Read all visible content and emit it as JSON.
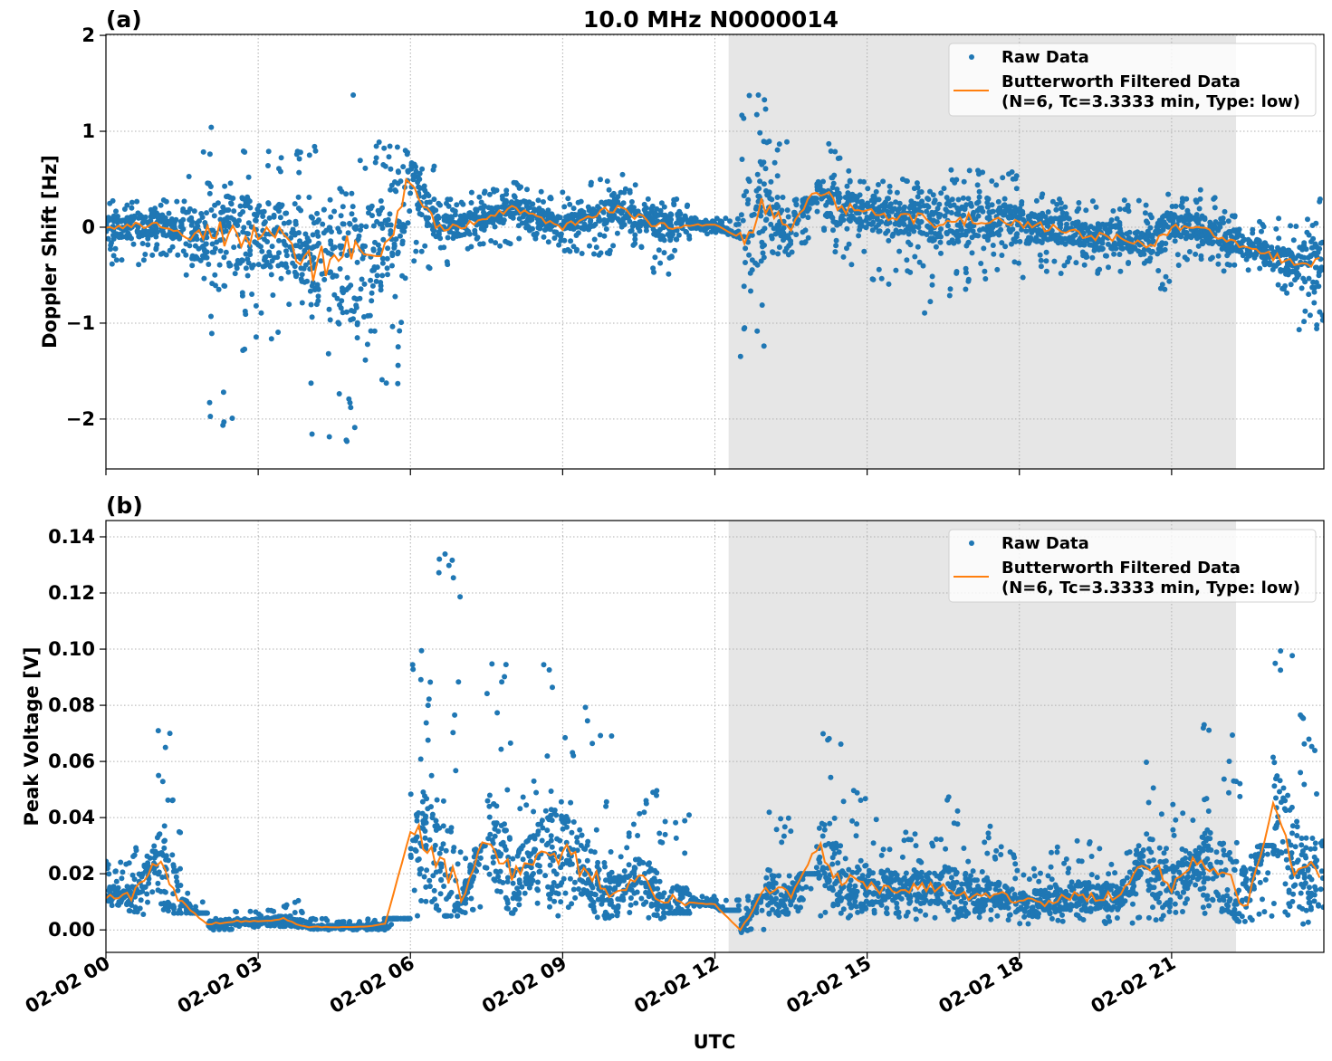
{
  "chart_data": {
    "type": "scatter",
    "title": "10.0 MHz N0000014",
    "xlabel": "UTC",
    "x_tick_labels": [
      "02-02 00",
      "02-02 03",
      "02-02 06",
      "02-02 09",
      "02-02 12",
      "02-02 15",
      "02-02 18",
      "02-02 21"
    ],
    "x_ticks_hours": [
      0,
      3,
      6,
      9,
      12,
      15,
      18,
      21
    ],
    "xlim_hours": [
      0,
      24
    ],
    "shaded_region_hours": [
      12.27,
      22.27
    ],
    "grid": true,
    "legend_placement": "top-right",
    "colors": {
      "raw": "#1f77b4",
      "filtered": "#ff7f0e",
      "shade": "#e6e6e6"
    },
    "bin_hours": [
      0,
      0.5,
      1,
      1.5,
      2,
      2.5,
      3,
      3.5,
      4,
      4.5,
      5,
      5.5,
      6,
      6.5,
      7,
      7.5,
      8,
      8.5,
      9,
      9.5,
      10,
      10.5,
      11,
      11.5,
      12,
      12.5,
      13,
      13.5,
      14,
      14.5,
      15,
      15.5,
      16,
      16.5,
      17,
      17.5,
      18,
      18.5,
      19,
      19.5,
      20,
      20.5,
      21,
      21.5,
      22,
      22.5,
      23,
      23.5
    ],
    "panels": [
      {
        "label": "(a)",
        "ylabel": "Doppler Shift [Hz]",
        "ylim": [
          -2.52,
          2.01
        ],
        "y_ticks": [
          -2,
          -1,
          0,
          1,
          2
        ],
        "y_tick_labels": [
          "−2",
          "−1",
          "0",
          "1",
          "2"
        ],
        "legend": [
          "Raw Data",
          "Butterworth Filtered Data",
          "(N=6, Tc=3.3333 min, Type: low)"
        ],
        "filtered": [
          0,
          0,
          0.05,
          -0.05,
          -0.1,
          -0.1,
          -0.05,
          -0.1,
          -0.4,
          -0.3,
          -0.3,
          -0.2,
          0.5,
          0,
          0,
          0.1,
          0.2,
          0.1,
          0,
          0.1,
          0.2,
          0.1,
          0,
          0.02,
          0.02,
          -0.1,
          0.2,
          0,
          0.4,
          0.2,
          0.15,
          0.1,
          0.1,
          0.05,
          0.1,
          0.1,
          0,
          0,
          -0.05,
          -0.1,
          -0.1,
          -0.2,
          0,
          0,
          -0.1,
          -0.2,
          -0.3,
          -0.4
        ],
        "raw_min": [
          -0.4,
          -0.4,
          -0.3,
          -0.6,
          -2.1,
          -1.5,
          -1.2,
          -1.0,
          -2.2,
          -2.3,
          -1.8,
          -1.7,
          -0.5,
          -0.4,
          -0.3,
          -0.2,
          -0.3,
          -0.2,
          -0.3,
          -0.3,
          -0.2,
          -0.5,
          -0.5,
          -0.1,
          -0.1,
          -1.5,
          -0.3,
          -0.3,
          -0.3,
          -0.4,
          -0.6,
          -0.5,
          -0.9,
          -0.8,
          -0.6,
          -0.5,
          -0.6,
          -0.5,
          -0.4,
          -0.5,
          -0.4,
          -0.7,
          -0.4,
          -0.4,
          -0.5,
          -0.5,
          -0.7,
          -1.1
        ],
        "raw_max": [
          0.3,
          0.3,
          0.3,
          0.9,
          1.1,
          0.8,
          0.8,
          0.8,
          1.0,
          1.8,
          1.0,
          0.9,
          0.7,
          0.3,
          0.4,
          0.4,
          0.5,
          0.4,
          0.3,
          0.5,
          0.6,
          0.3,
          0.3,
          0.1,
          0.1,
          1.4,
          0.9,
          0.3,
          0.9,
          0.6,
          0.5,
          0.5,
          0.4,
          0.6,
          0.6,
          0.6,
          0.4,
          0.3,
          0.3,
          0.3,
          0.3,
          0.4,
          0.3,
          0.4,
          0.2,
          0.1,
          0.1,
          0.3
        ]
      },
      {
        "label": "(b)",
        "ylabel": "Peak Voltage [V]",
        "ylim": [
          -0.008,
          0.1458
        ],
        "y_ticks": [
          0,
          0.02,
          0.04,
          0.06,
          0.08,
          0.1,
          0.12,
          0.14
        ],
        "y_tick_labels": [
          "0.00",
          "0.02",
          "0.04",
          "0.06",
          "0.08",
          "0.10",
          "0.12",
          "0.14"
        ],
        "legend": [
          "Raw Data",
          "Butterworth Filtered Data",
          "(N=6, Tc=3.3333 min, Type: low)"
        ],
        "filtered": [
          0.012,
          0.012,
          0.025,
          0.01,
          0.002,
          0.003,
          0.003,
          0.004,
          0.001,
          0.001,
          0.001,
          0.002,
          0.035,
          0.03,
          0.01,
          0.035,
          0.02,
          0.025,
          0.03,
          0.02,
          0.012,
          0.02,
          0.01,
          0.01,
          0.009,
          0.0,
          0.015,
          0.012,
          0.03,
          0.018,
          0.015,
          0.015,
          0.015,
          0.015,
          0.012,
          0.013,
          0.01,
          0.01,
          0.012,
          0.012,
          0.012,
          0.025,
          0.015,
          0.025,
          0.02,
          0.01,
          0.045,
          0.02
        ],
        "raw_min": [
          0.004,
          0.005,
          0.006,
          0.006,
          0.0,
          0.001,
          0.001,
          0.001,
          0.0,
          0.0,
          0.0,
          0.0,
          0.004,
          0.005,
          0.006,
          0.006,
          0.005,
          0.005,
          0.005,
          0.004,
          0.004,
          0.004,
          0.006,
          0.008,
          0.007,
          -0.001,
          0.005,
          0.006,
          0.005,
          0.004,
          0.004,
          0.003,
          0.003,
          0.003,
          0.003,
          0.003,
          0.002,
          0.002,
          0.002,
          0.002,
          0.002,
          0.003,
          0.003,
          0.003,
          0.003,
          0.003,
          0.005,
          0.002
        ],
        "raw_max": [
          0.026,
          0.03,
          0.073,
          0.015,
          0.006,
          0.008,
          0.007,
          0.011,
          0.004,
          0.003,
          0.004,
          0.004,
          0.1,
          0.134,
          0.03,
          0.095,
          0.06,
          0.1,
          0.08,
          0.07,
          0.04,
          0.05,
          0.048,
          0.012,
          0.011,
          0.012,
          0.047,
          0.02,
          0.07,
          0.05,
          0.04,
          0.035,
          0.035,
          0.048,
          0.037,
          0.03,
          0.025,
          0.03,
          0.032,
          0.03,
          0.03,
          0.063,
          0.045,
          0.078,
          0.07,
          0.03,
          0.106,
          0.077
        ]
      }
    ]
  }
}
